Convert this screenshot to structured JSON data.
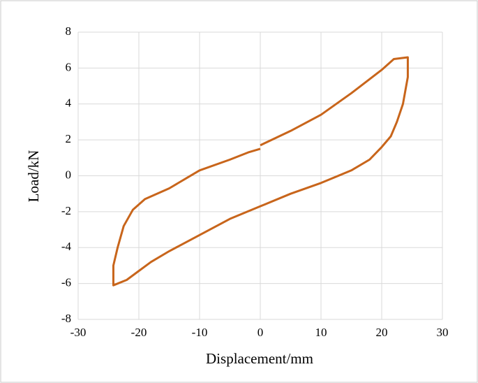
{
  "chart_data": {
    "type": "line",
    "x_label": "Displacement/mm",
    "y_label": "Load/kN",
    "x": [
      0,
      5,
      10,
      15,
      20,
      22,
      24.3,
      24.3,
      23.5,
      22.5,
      21.5,
      20,
      18,
      15,
      10,
      5,
      0,
      -5,
      -10,
      -15,
      -18,
      -20,
      -22,
      -24.2,
      -24.2,
      -23.5,
      -22.5,
      -21,
      -19,
      -15,
      -12,
      -10,
      -5,
      -2,
      0
    ],
    "series": [
      {
        "color": "#c8651b",
        "values": [
          1.7,
          2.5,
          3.4,
          4.6,
          5.9,
          6.5,
          6.6,
          5.5,
          4,
          3,
          2.2,
          1.6,
          0.9,
          0.3,
          -0.4,
          -1.0,
          -1.7,
          -2.4,
          -3.3,
          -4.2,
          -4.8,
          -5.3,
          -5.8,
          -6.1,
          -5,
          -4,
          -2.8,
          -1.9,
          -1.3,
          -0.7,
          -0.1,
          0.3,
          0.9,
          1.3,
          1.5
        ]
      }
    ],
    "xlim": [
      -30,
      30
    ],
    "xticks": [
      -30,
      -20,
      -10,
      0,
      10,
      20,
      30
    ],
    "ylim": [
      -8,
      8
    ],
    "yticks": [
      -8,
      -6,
      -4,
      -2,
      0,
      2,
      4,
      6,
      8
    ],
    "grid": true
  }
}
